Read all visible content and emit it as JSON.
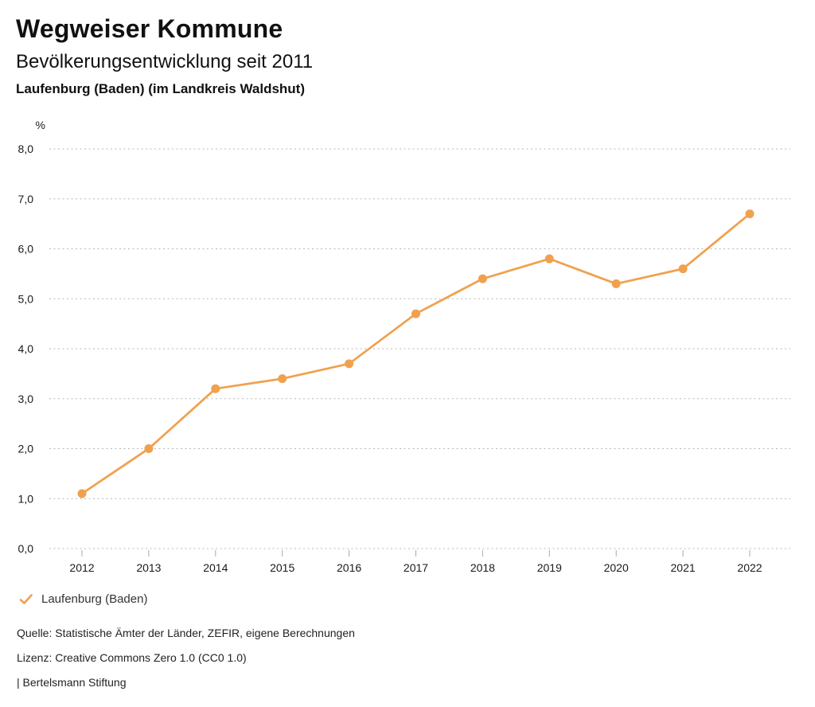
{
  "header": {
    "title": "Wegweiser Kommune",
    "subtitle": "Bevölkerungsentwicklung seit 2011",
    "region": "Laufenburg (Baden) (im Landkreis Waldshut)"
  },
  "chart_data": {
    "type": "line",
    "title": "Bevölkerungsentwicklung seit 2011",
    "subtitle": "Laufenburg (Baden) (im Landkreis Waldshut)",
    "unit": "%",
    "categories": [
      "2012",
      "2013",
      "2014",
      "2015",
      "2016",
      "2017",
      "2018",
      "2019",
      "2020",
      "2021",
      "2022"
    ],
    "series": [
      {
        "name": "Laufenburg (Baden)",
        "color": "#f0a14e",
        "values": [
          1.1,
          2.0,
          3.2,
          3.4,
          3.7,
          4.7,
          5.4,
          5.8,
          5.3,
          5.6,
          6.7
        ]
      }
    ],
    "ylim": [
      0,
      8
    ],
    "ytick_step": 1.0,
    "ytick_labels": [
      "0,0",
      "1,0",
      "2,0",
      "3,0",
      "4,0",
      "5,0",
      "6,0",
      "7,0",
      "8,0"
    ],
    "grid": "horizontal-dotted",
    "legend_position": "bottom-left"
  },
  "legend": {
    "items": [
      {
        "label": "Laufenburg (Baden)",
        "marker": "check-icon",
        "color": "#f0a14e"
      }
    ]
  },
  "footer": {
    "source": "Quelle: Statistische Ämter der Länder, ZEFIR, eigene Berechnungen",
    "license": "Lizenz: Creative Commons Zero 1.0 (CC0 1.0)",
    "attribution": "| Bertelsmann Stiftung"
  },
  "colors": {
    "series": "#f0a14e",
    "gridline": "#b7b7b7",
    "tick": "#a9a9a9",
    "axis_text": "#1a1a1a",
    "background": "#ffffff"
  }
}
